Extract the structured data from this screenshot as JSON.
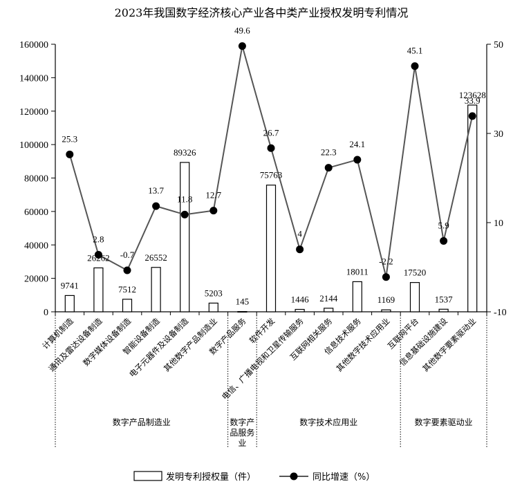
{
  "chart_data": {
    "type": "bar+line",
    "title": "2023年我国数字经济核心产业各中类产业授权发明专利情况",
    "categories": [
      "计算机制造",
      "通讯及雷达设备制造",
      "数字媒体设备制造",
      "智能设备制造",
      "电子元器件及设备制造",
      "其他数字产品制造业",
      "数字产品服务",
      "软件开发",
      "电信、广播电视和卫星传输服务",
      "互联网相关服务",
      "信息技术服务",
      "其他数字技术应用业",
      "互联网平台",
      "信息基础设施建设",
      "其他数字要素驱动业"
    ],
    "groups": [
      {
        "label": "数字产品制造业",
        "start": 0,
        "end": 5
      },
      {
        "label": "数字产品服务业",
        "start": 6,
        "end": 6
      },
      {
        "label": "数字技术应用业",
        "start": 7,
        "end": 11
      },
      {
        "label": "数字要素驱动业",
        "start": 12,
        "end": 14
      }
    ],
    "series": [
      {
        "name": "发明专利授权量（件）",
        "type": "bar",
        "axis": "left",
        "values": [
          9741,
          26262,
          7512,
          26552,
          89326,
          5203,
          145,
          75763,
          1446,
          2144,
          18011,
          1169,
          17520,
          1537,
          123628
        ]
      },
      {
        "name": "同比增速（%）",
        "type": "line",
        "axis": "right",
        "values": [
          25.3,
          2.8,
          -0.7,
          13.7,
          11.8,
          12.7,
          49.6,
          26.7,
          4,
          22.3,
          24.1,
          -2.2,
          45.1,
          5.9,
          33.9
        ]
      }
    ],
    "y_left": {
      "min": 0,
      "max": 160000,
      "ticks": [
        0,
        20000,
        40000,
        60000,
        80000,
        100000,
        120000,
        140000,
        160000
      ]
    },
    "y_right": {
      "min": -10,
      "max": 50,
      "ticks": [
        -10,
        10,
        30,
        50
      ]
    },
    "legend": "bottom",
    "grid": false
  },
  "legend_items": {
    "bar": "发明专利授权量（件）",
    "line": "同比增速（%）"
  }
}
